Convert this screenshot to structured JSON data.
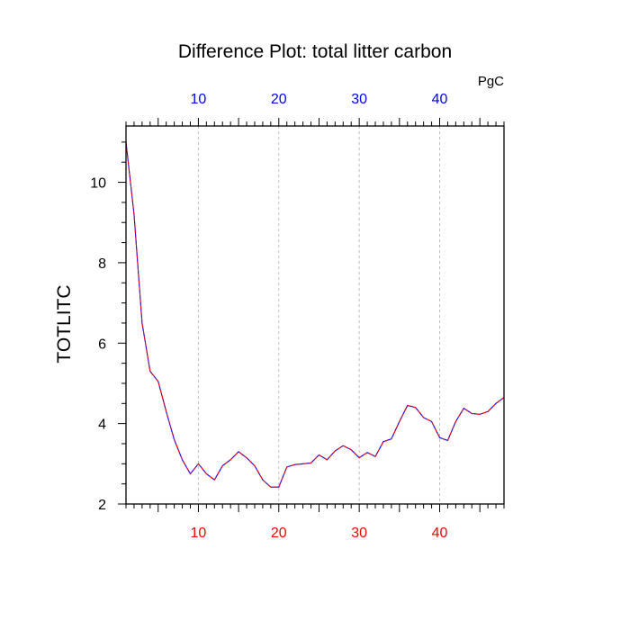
{
  "chart_data": {
    "type": "line",
    "title": "Difference Plot: total litter carbon",
    "units_label": "PgC",
    "ylabel": "TOTLITC",
    "xlabel": "",
    "xlim": [
      1,
      48
    ],
    "ylim": [
      2,
      11.4
    ],
    "x_ticks": [
      10,
      20,
      30,
      40
    ],
    "y_ticks": [
      2,
      4,
      6,
      8,
      10
    ],
    "top_tick_color": "#0000ff",
    "bottom_tick_color": "#ff0000",
    "grid": "vertical-dashed",
    "series": [
      {
        "line_colors": [
          "#0000ff",
          "#ff0000"
        ],
        "x": [
          1,
          2,
          3,
          4,
          5,
          6,
          7,
          8,
          9,
          10,
          11,
          12,
          13,
          14,
          15,
          16,
          17,
          18,
          19,
          20,
          21,
          22,
          23,
          24,
          25,
          26,
          27,
          28,
          29,
          30,
          31,
          32,
          33,
          34,
          35,
          36,
          37,
          38,
          39,
          40,
          41,
          42,
          43,
          44,
          45,
          46,
          47,
          48
        ],
        "values": [
          11.0,
          9.2,
          6.5,
          5.3,
          5.05,
          4.3,
          3.6,
          3.1,
          2.75,
          3.0,
          2.75,
          2.6,
          2.95,
          3.1,
          3.3,
          3.15,
          2.95,
          2.6,
          2.42,
          2.42,
          2.92,
          2.98,
          3.0,
          3.02,
          3.22,
          3.1,
          3.32,
          3.45,
          3.35,
          3.15,
          3.28,
          3.18,
          3.55,
          3.62,
          4.05,
          4.45,
          4.4,
          4.15,
          4.05,
          3.65,
          3.58,
          4.05,
          4.38,
          4.25,
          4.23,
          4.3,
          4.5,
          4.65
        ]
      }
    ]
  }
}
